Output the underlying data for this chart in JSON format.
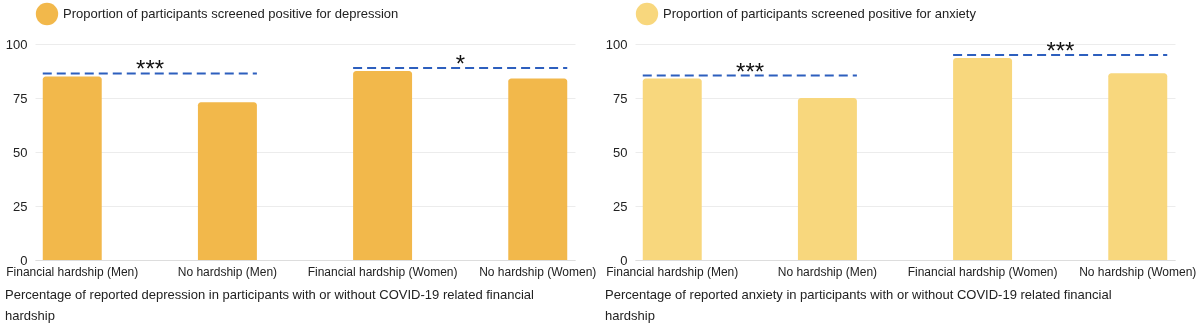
{
  "chart_data": [
    {
      "type": "bar",
      "categories": [
        "Financial hardship (Men)",
        "No hardship (Men)",
        "Financial hardship (Women)",
        "No hardship (Women)"
      ],
      "series": [
        {
          "name": "Proportion of participants screened positive for depression",
          "color": "#f2b84b",
          "values": [
            85,
            73,
            87.5,
            84
          ]
        }
      ],
      "ylim": [
        0,
        100
      ],
      "yticks": [
        0,
        25,
        50,
        75,
        100
      ],
      "grid": "y",
      "legend": "top",
      "annotations": [
        "***",
        "*",
        "Percentage of reported depression in participants with or without COVID-19 related financial hardship"
      ]
    },
    {
      "type": "bar",
      "categories": [
        "Financial hardship (Men)",
        "No hardship (Men)",
        "Financial hardship (Women)",
        "No hardship (Women)"
      ],
      "series": [
        {
          "name": "Proportion of participants screened positive for anxiety",
          "color": "#f8d77d",
          "values": [
            84,
            75,
            93.5,
            86.5
          ]
        }
      ],
      "ylim": [
        0,
        100
      ],
      "yticks": [
        0,
        25,
        50,
        75,
        100
      ],
      "grid": "y",
      "legend": "top",
      "annotations": [
        "***",
        "***",
        "Percentage of reported anxiety in participants with or without COVID-19 related financial hardship"
      ]
    }
  ]
}
